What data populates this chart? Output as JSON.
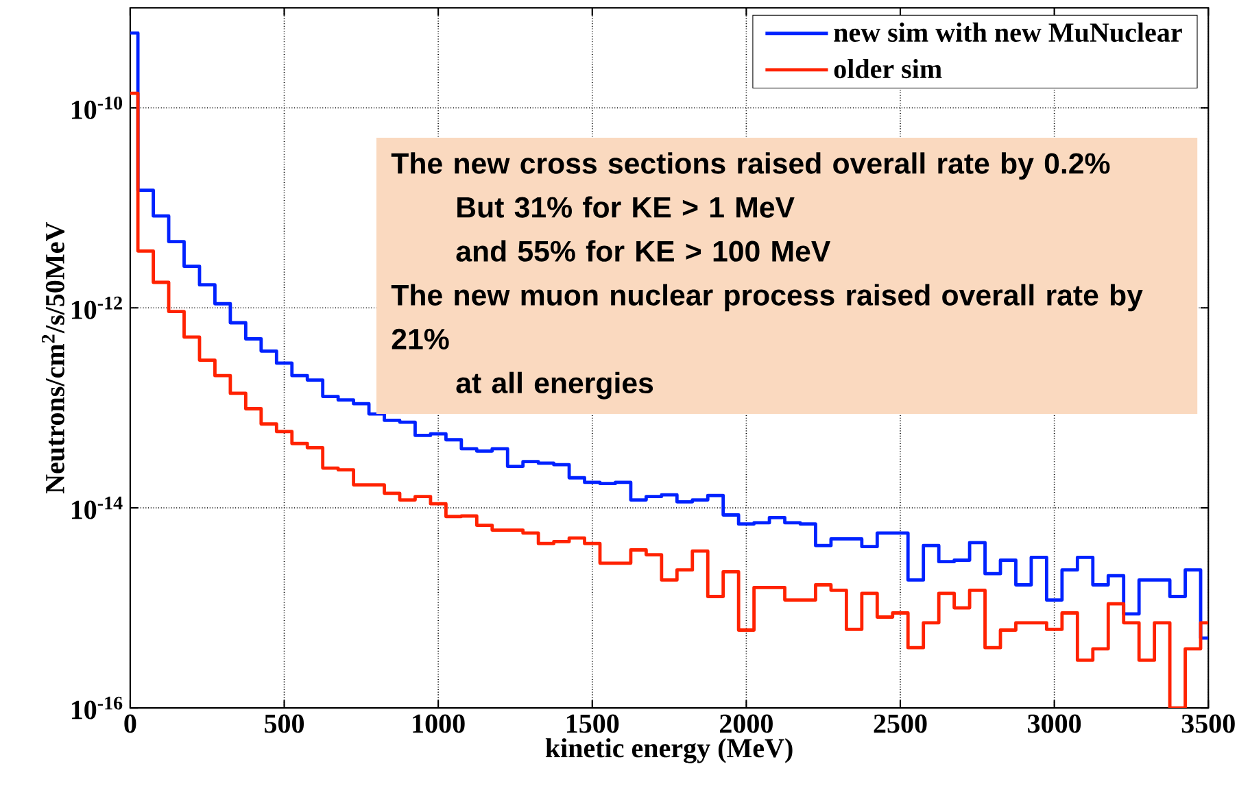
{
  "chart_data": {
    "type": "histogram",
    "xlabel": "kinetic energy (MeV)",
    "ylabel": "Neutrons/cm$^{2}$/s/50MeV",
    "bins": [
      0,
      25,
      75,
      125,
      175,
      225,
      275,
      325,
      375,
      425,
      475,
      525,
      575,
      625,
      675,
      725,
      775,
      825,
      875,
      925,
      975,
      1025,
      1075,
      1125,
      1175,
      1225,
      1275,
      1325,
      1375,
      1425,
      1475,
      1525,
      1575,
      1625,
      1675,
      1725,
      1775,
      1825,
      1875,
      1925,
      1975,
      2025,
      2075,
      2125,
      2175,
      2225,
      2275,
      2325,
      2375,
      2425,
      2475,
      2525,
      2575,
      2625,
      2675,
      2725,
      2775,
      2825,
      2875,
      2925,
      2975,
      3025,
      3075,
      3125,
      3175,
      3225,
      3275,
      3325,
      3375,
      3425,
      3475,
      3500
    ],
    "series": [
      {
        "name": "new sim with new MuNuclear",
        "color": "#0022ff",
        "values": [
          5.6e-10,
          1.5e-11,
          8.3e-12,
          4.6e-12,
          2.6e-12,
          1.7e-12,
          1.1e-12,
          7.1e-13,
          4.9e-13,
          3.7e-13,
          2.8e-13,
          2.1e-13,
          1.9e-13,
          1.3e-13,
          1.2e-13,
          1.1e-13,
          8.7e-14,
          7.5e-14,
          7.2e-14,
          5.3e-14,
          5.5e-14,
          4.8e-14,
          3.9e-14,
          3.7e-14,
          3.9e-14,
          2.6e-14,
          2.9e-14,
          2.8e-14,
          2.7e-14,
          2e-14,
          1.8e-14,
          1.75e-14,
          1.8e-14,
          1.2e-14,
          1.3e-14,
          1.35e-14,
          1.15e-14,
          1.2e-14,
          1.33e-14,
          8.5e-15,
          6.9e-15,
          7.1e-15,
          8e-15,
          7.1e-15,
          6.9e-15,
          4.2e-15,
          4.9e-15,
          4.9e-15,
          4.1e-15,
          5.6e-15,
          5.6e-15,
          1.9e-15,
          4.2e-15,
          2.9e-15,
          3e-15,
          4.5e-15,
          2.2e-15,
          3e-15,
          1.7e-15,
          3.2e-15,
          1.2e-15,
          2.4e-15,
          3.2e-15,
          1.7e-15,
          2.1e-15,
          8.7e-16,
          1.9e-15,
          1.9e-15,
          1.3e-15,
          2.4e-15,
          5e-16
        ]
      },
      {
        "name": "older sim",
        "color": "#ff2200",
        "values": [
          1.4e-10,
          3.7e-12,
          1.8e-12,
          9.2e-13,
          5.1e-13,
          3e-13,
          2.1e-13,
          1.4e-13,
          9.8e-14,
          6.9e-14,
          5.8e-14,
          4.4e-14,
          4e-14,
          2.5e-14,
          2.4e-14,
          1.7e-14,
          1.7e-14,
          1.4e-14,
          1.2e-14,
          1.3e-14,
          1.1e-14,
          8.2e-15,
          8.3e-15,
          6.7e-15,
          6e-15,
          6e-15,
          5.6e-15,
          4.4e-15,
          4.6e-15,
          5e-15,
          4.4e-15,
          2.8e-15,
          2.8e-15,
          3.8e-15,
          3.4e-15,
          1.9e-15,
          2.4e-15,
          3.7e-15,
          1.3e-15,
          2.3e-15,
          6e-16,
          1.6e-15,
          1.6e-15,
          1.2e-15,
          1.2e-15,
          1.7e-15,
          1.5e-15,
          6.1e-16,
          1.4e-15,
          8.1e-16,
          8.9e-16,
          4e-16,
          7.1e-16,
          1.4e-15,
          1e-15,
          1.5e-15,
          4e-16,
          6e-16,
          7.1e-16,
          7.1e-16,
          6.1e-16,
          8.9e-16,
          3e-16,
          3.9e-16,
          1.1e-15,
          7.1e-16,
          3e-16,
          7.1e-16,
          1e-16,
          3.9e-16,
          7.1e-16
        ]
      }
    ],
    "xlim": [
      0,
      3500
    ],
    "xticks": [
      0,
      500,
      1000,
      1500,
      2000,
      2500,
      3000,
      3500
    ],
    "ylim": [
      1e-16,
      1e-09
    ],
    "yticks": [
      {
        "value": 1e-16,
        "label": "10$^{-16}$"
      },
      {
        "value": 1e-14,
        "label": "10$^{-14}$"
      },
      {
        "value": 1e-12,
        "label": "10$^{-12}$"
      },
      {
        "value": 1e-10,
        "label": "10$^{-10}$"
      }
    ],
    "log": "y",
    "grid": true,
    "legend": "top right",
    "annotations": [
      "The new cross sections raised overall rate by 0.2%",
      "But 31% for KE > 1 MeV",
      "and 55% for KE > 100 MeV",
      "The new muon nuclear process raised overall rate by 21%",
      "at all energies"
    ]
  }
}
